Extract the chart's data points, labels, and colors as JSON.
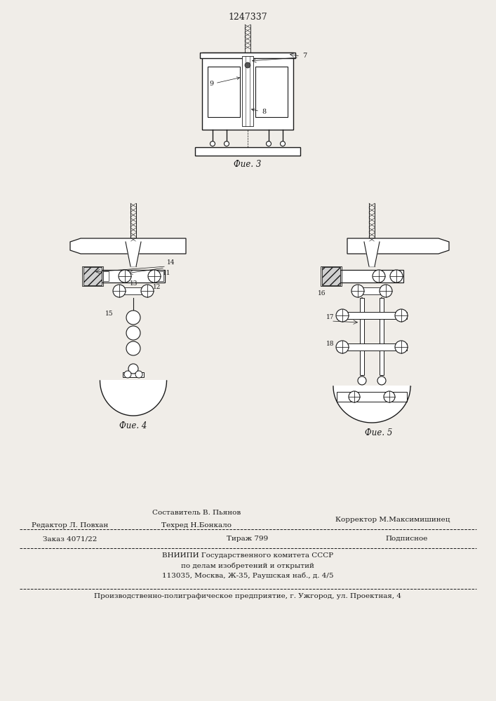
{
  "patent_number": "1247337",
  "fig3_caption": "Фие. 3",
  "fig4_caption": "Фие. 4",
  "fig5_caption": "Фие. 5",
  "footer_line1_left": "Редактор Л. Повхан",
  "footer_line1_center": "Составитель В. Пьянов",
  "footer_line1_right": "Корректор М.Максимишинец",
  "footer_line2_center": "Техред Н.Бонкало",
  "footer_line3_left": "Заказ 4071/22",
  "footer_line3_center": "Тираж 799",
  "footer_line3_right": "Подписное",
  "footer_line4": "ВНИИПИ Государственного комитета СССР",
  "footer_line5": "по делам изобретений и открытий",
  "footer_line6": "113035, Москва, Ж-35, Раушская наб., д. 4/5",
  "footer_line7": "Производственно-полиграфическое предприятие, г. Ужгород, ул. Проектная, 4",
  "bg_color": "#f0ede8",
  "line_color": "#1a1a1a"
}
